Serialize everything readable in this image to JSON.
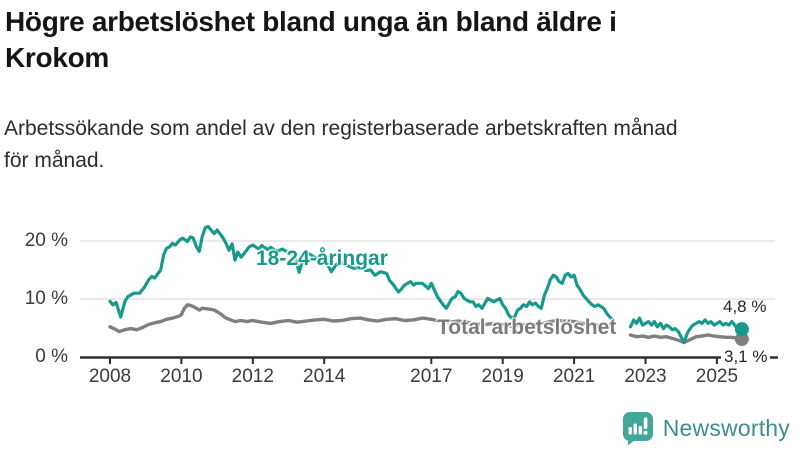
{
  "header": {
    "title_lines": [
      "Högre arbetslöshet bland unga än bland äldre i",
      "Krokom"
    ],
    "subtitle_lines": [
      "Arbetssökande som andel av den registerbaserade arbetskraften månad",
      "för månad."
    ]
  },
  "footer": {
    "brand": "Newsworthy"
  },
  "colors": {
    "young_line": "#179a8b",
    "total_line": "#7f7f7f",
    "gridline": "#dcdcdc",
    "axis": "#2f2f2f",
    "logo_icon": "#42a79a",
    "logo_text": "#3f8e89"
  },
  "chart_data": {
    "type": "line",
    "title": "Högre arbetslöshet bland unga än bland äldre i Krokom",
    "subtitle": "Arbetssökande som andel av den registerbaserade arbetskraften månad för månad.",
    "xlabel": "",
    "ylabel": "",
    "xlim": [
      2007.3,
      2026.3
    ],
    "ylim": [
      0,
      24.5
    ],
    "grid": "horizontal",
    "legend_position": "inline-labels",
    "y_ticks": [
      {
        "v": 0,
        "label": "0 %"
      },
      {
        "v": 10,
        "label": "10 %"
      },
      {
        "v": 20,
        "label": "20 %"
      }
    ],
    "x_ticks": [
      {
        "v": 2008,
        "label": "2008"
      },
      {
        "v": 2010,
        "label": "2010"
      },
      {
        "v": 2012,
        "label": "2012"
      },
      {
        "v": 2014,
        "label": "2014"
      },
      {
        "v": 2017,
        "label": "2017"
      },
      {
        "v": 2019,
        "label": "2019"
      },
      {
        "v": 2021,
        "label": "2021"
      },
      {
        "v": 2023,
        "label": "2023"
      },
      {
        "v": 2025,
        "label": "2025"
      }
    ],
    "series": [
      {
        "name": "18-24-åringar",
        "color": "#179a8b",
        "end_value": 4.8,
        "end_label": "4,8 %",
        "points": [
          [
            2008.0,
            9.6
          ],
          [
            2008.08,
            9.0
          ],
          [
            2008.17,
            9.4
          ],
          [
            2008.3,
            6.9
          ],
          [
            2008.42,
            9.6
          ],
          [
            2008.5,
            10.4
          ],
          [
            2008.67,
            11.0
          ],
          [
            2008.83,
            11.0
          ],
          [
            2008.96,
            12.0
          ],
          [
            2009.08,
            13.3
          ],
          [
            2009.17,
            13.9
          ],
          [
            2009.25,
            13.6
          ],
          [
            2009.42,
            15.0
          ],
          [
            2009.5,
            17.6
          ],
          [
            2009.58,
            18.7
          ],
          [
            2009.67,
            19.0
          ],
          [
            2009.75,
            19.6
          ],
          [
            2009.83,
            19.3
          ],
          [
            2009.96,
            20.2
          ],
          [
            2010.04,
            20.5
          ],
          [
            2010.17,
            19.9
          ],
          [
            2010.25,
            20.7
          ],
          [
            2010.33,
            20.5
          ],
          [
            2010.42,
            19.0
          ],
          [
            2010.5,
            18.2
          ],
          [
            2010.58,
            20.7
          ],
          [
            2010.67,
            22.3
          ],
          [
            2010.75,
            22.5
          ],
          [
            2010.83,
            21.9
          ],
          [
            2010.92,
            21.3
          ],
          [
            2011.0,
            21.9
          ],
          [
            2011.17,
            20.5
          ],
          [
            2011.25,
            19.6
          ],
          [
            2011.33,
            18.4
          ],
          [
            2011.42,
            19.5
          ],
          [
            2011.5,
            16.7
          ],
          [
            2011.58,
            18.1
          ],
          [
            2011.67,
            17.2
          ],
          [
            2011.75,
            17.8
          ],
          [
            2011.9,
            19.0
          ],
          [
            2012.0,
            19.3
          ],
          [
            2012.17,
            18.6
          ],
          [
            2012.25,
            19.2
          ],
          [
            2012.42,
            18.5
          ],
          [
            2012.5,
            18.9
          ],
          [
            2012.67,
            18.2
          ],
          [
            2012.83,
            18.6
          ],
          [
            2013.0,
            18.0
          ],
          [
            2013.17,
            17.4
          ],
          [
            2013.3,
            14.6
          ],
          [
            2013.42,
            17.2
          ],
          [
            2013.58,
            17.8
          ],
          [
            2013.75,
            17.1
          ],
          [
            2013.92,
            16.6
          ],
          [
            2014.08,
            16.1
          ],
          [
            2014.2,
            14.7
          ],
          [
            2014.33,
            15.9
          ],
          [
            2014.5,
            16.3
          ],
          [
            2014.67,
            15.7
          ],
          [
            2014.83,
            15.3
          ],
          [
            2015.0,
            15.4
          ],
          [
            2015.17,
            14.9
          ],
          [
            2015.3,
            15.0
          ],
          [
            2015.42,
            14.1
          ],
          [
            2015.58,
            14.7
          ],
          [
            2015.75,
            14.4
          ],
          [
            2015.83,
            13.2
          ],
          [
            2015.92,
            12.6
          ],
          [
            2016.08,
            11.2
          ],
          [
            2016.17,
            11.8
          ],
          [
            2016.25,
            12.4
          ],
          [
            2016.42,
            13.0
          ],
          [
            2016.5,
            12.4
          ],
          [
            2016.58,
            12.7
          ],
          [
            2016.75,
            12.7
          ],
          [
            2016.92,
            11.8
          ],
          [
            2017.0,
            12.7
          ],
          [
            2017.08,
            11.6
          ],
          [
            2017.17,
            10.4
          ],
          [
            2017.33,
            9.0
          ],
          [
            2017.42,
            8.4
          ],
          [
            2017.5,
            9.3
          ],
          [
            2017.58,
            10.1
          ],
          [
            2017.67,
            10.4
          ],
          [
            2017.75,
            11.3
          ],
          [
            2017.83,
            11.0
          ],
          [
            2017.92,
            10.1
          ],
          [
            2018.0,
            9.8
          ],
          [
            2018.08,
            9.5
          ],
          [
            2018.17,
            9.5
          ],
          [
            2018.25,
            8.7
          ],
          [
            2018.33,
            9.0
          ],
          [
            2018.42,
            8.4
          ],
          [
            2018.58,
            10.1
          ],
          [
            2018.67,
            9.8
          ],
          [
            2018.75,
            9.5
          ],
          [
            2018.92,
            10.1
          ],
          [
            2019.0,
            9.0
          ],
          [
            2019.08,
            8.4
          ],
          [
            2019.17,
            7.2
          ],
          [
            2019.25,
            6.7
          ],
          [
            2019.33,
            6.9
          ],
          [
            2019.42,
            8.1
          ],
          [
            2019.5,
            8.4
          ],
          [
            2019.58,
            9.0
          ],
          [
            2019.67,
            8.7
          ],
          [
            2019.75,
            9.5
          ],
          [
            2019.83,
            9.0
          ],
          [
            2019.92,
            9.3
          ],
          [
            2020.0,
            8.7
          ],
          [
            2020.08,
            8.4
          ],
          [
            2020.17,
            10.7
          ],
          [
            2020.25,
            11.8
          ],
          [
            2020.33,
            13.3
          ],
          [
            2020.42,
            14.1
          ],
          [
            2020.5,
            13.8
          ],
          [
            2020.58,
            13.0
          ],
          [
            2020.67,
            12.7
          ],
          [
            2020.75,
            14.1
          ],
          [
            2020.83,
            14.4
          ],
          [
            2020.92,
            13.8
          ],
          [
            2021.0,
            14.1
          ],
          [
            2021.08,
            12.4
          ],
          [
            2021.17,
            11.6
          ],
          [
            2021.25,
            10.7
          ],
          [
            2021.42,
            9.5
          ],
          [
            2021.5,
            9.0
          ],
          [
            2021.58,
            8.7
          ],
          [
            2021.67,
            9.0
          ],
          [
            2021.83,
            8.4
          ],
          [
            2021.92,
            7.5
          ],
          [
            2022.0,
            6.9
          ],
          [
            2022.08,
            6.4
          ],
          null,
          [
            2022.58,
            5.2
          ],
          [
            2022.67,
            6.4
          ],
          [
            2022.75,
            5.8
          ],
          [
            2022.83,
            6.7
          ],
          [
            2022.92,
            5.5
          ],
          [
            2023.08,
            6.1
          ],
          [
            2023.17,
            5.5
          ],
          [
            2023.25,
            6.1
          ],
          [
            2023.33,
            5.2
          ],
          [
            2023.42,
            5.8
          ],
          [
            2023.5,
            4.9
          ],
          [
            2023.58,
            5.5
          ],
          [
            2023.67,
            5.2
          ],
          [
            2023.75,
            4.7
          ],
          [
            2023.83,
            4.9
          ],
          [
            2023.92,
            4.4
          ],
          [
            2024.08,
            2.5
          ],
          [
            2024.17,
            4.1
          ],
          [
            2024.25,
            4.9
          ],
          [
            2024.33,
            5.5
          ],
          [
            2024.5,
            6.1
          ],
          [
            2024.58,
            5.8
          ],
          [
            2024.67,
            6.4
          ],
          [
            2024.75,
            5.8
          ],
          [
            2024.83,
            6.1
          ],
          [
            2024.92,
            5.5
          ],
          [
            2025.08,
            6.1
          ],
          [
            2025.17,
            5.5
          ],
          [
            2025.25,
            5.8
          ],
          [
            2025.33,
            5.5
          ],
          [
            2025.42,
            6.1
          ],
          [
            2025.5,
            5.5
          ],
          [
            2025.58,
            4.7
          ],
          [
            2025.7,
            4.8
          ]
        ]
      },
      {
        "name": "Total arbetslöshet",
        "color": "#7f7f7f",
        "end_value": 3.1,
        "end_label": "3,1 %",
        "points": [
          [
            2008.0,
            5.2
          ],
          [
            2008.17,
            4.7
          ],
          [
            2008.25,
            4.4
          ],
          [
            2008.42,
            4.7
          ],
          [
            2008.58,
            4.9
          ],
          [
            2008.75,
            4.7
          ],
          [
            2008.92,
            5.1
          ],
          [
            2009.08,
            5.6
          ],
          [
            2009.25,
            5.9
          ],
          [
            2009.42,
            6.1
          ],
          [
            2009.58,
            6.5
          ],
          [
            2009.75,
            6.7
          ],
          [
            2009.92,
            7.0
          ],
          [
            2010.0,
            7.3
          ],
          [
            2010.08,
            8.4
          ],
          [
            2010.17,
            9.0
          ],
          [
            2010.25,
            8.9
          ],
          [
            2010.33,
            8.7
          ],
          [
            2010.5,
            8.1
          ],
          [
            2010.58,
            8.4
          ],
          [
            2010.75,
            8.3
          ],
          [
            2010.92,
            8.1
          ],
          [
            2011.08,
            7.5
          ],
          [
            2011.25,
            6.7
          ],
          [
            2011.5,
            6.1
          ],
          [
            2011.67,
            6.3
          ],
          [
            2011.83,
            6.1
          ],
          [
            2012.0,
            6.3
          ],
          [
            2012.25,
            6.0
          ],
          [
            2012.5,
            5.8
          ],
          [
            2012.75,
            6.1
          ],
          [
            2013.0,
            6.3
          ],
          [
            2013.25,
            6.0
          ],
          [
            2013.5,
            6.2
          ],
          [
            2013.75,
            6.4
          ],
          [
            2014.0,
            6.5
          ],
          [
            2014.25,
            6.2
          ],
          [
            2014.5,
            6.3
          ],
          [
            2014.75,
            6.6
          ],
          [
            2015.0,
            6.7
          ],
          [
            2015.25,
            6.4
          ],
          [
            2015.5,
            6.2
          ],
          [
            2015.75,
            6.5
          ],
          [
            2016.0,
            6.6
          ],
          [
            2016.25,
            6.3
          ],
          [
            2016.5,
            6.4
          ],
          [
            2016.75,
            6.7
          ],
          [
            2017.0,
            6.5
          ],
          [
            2017.25,
            6.2
          ],
          [
            2017.5,
            6.0
          ],
          [
            2017.75,
            6.2
          ],
          [
            2018.0,
            6.0
          ],
          [
            2018.25,
            5.7
          ],
          [
            2018.5,
            5.6
          ],
          [
            2018.75,
            5.8
          ],
          [
            2019.0,
            5.6
          ],
          [
            2019.25,
            5.3
          ],
          [
            2019.5,
            5.5
          ],
          [
            2019.75,
            5.6
          ],
          [
            2020.0,
            5.5
          ],
          [
            2020.25,
            6.0
          ],
          [
            2020.5,
            6.3
          ],
          [
            2020.75,
            6.2
          ],
          [
            2021.0,
            6.1
          ],
          [
            2021.25,
            5.8
          ],
          [
            2021.5,
            5.6
          ],
          [
            2021.75,
            5.4
          ],
          [
            2022.0,
            5.1
          ],
          [
            2022.08,
            5.0
          ],
          null,
          [
            2022.58,
            3.8
          ],
          [
            2022.75,
            3.5
          ],
          [
            2022.92,
            3.6
          ],
          [
            2023.08,
            3.4
          ],
          [
            2023.25,
            3.6
          ],
          [
            2023.42,
            3.4
          ],
          [
            2023.58,
            3.5
          ],
          [
            2023.75,
            3.2
          ],
          [
            2023.92,
            2.9
          ],
          [
            2024.08,
            2.5
          ],
          [
            2024.25,
            3.0
          ],
          [
            2024.42,
            3.5
          ],
          [
            2024.58,
            3.6
          ],
          [
            2024.75,
            3.8
          ],
          [
            2024.92,
            3.6
          ],
          [
            2025.08,
            3.5
          ],
          [
            2025.25,
            3.4
          ],
          [
            2025.42,
            3.4
          ],
          [
            2025.58,
            3.2
          ],
          [
            2025.7,
            3.1
          ]
        ]
      }
    ]
  }
}
